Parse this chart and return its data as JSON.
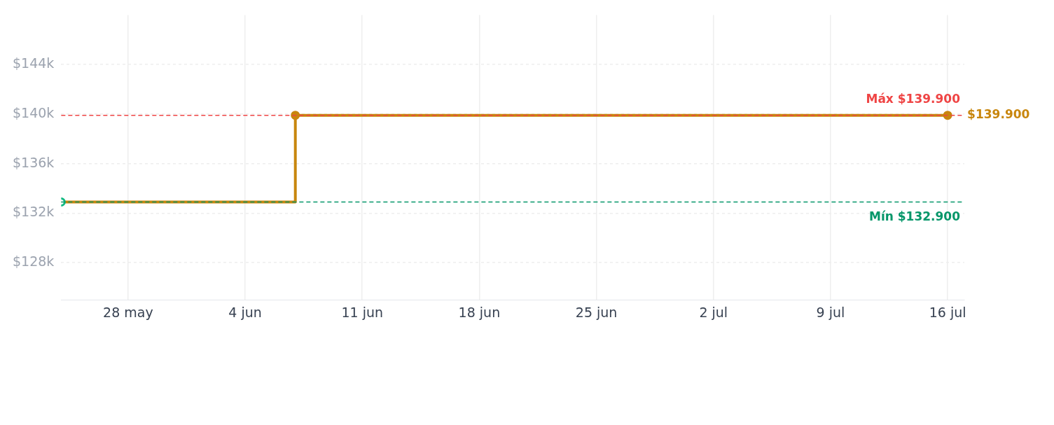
{
  "chart_data": {
    "type": "step",
    "x": [
      "--05-24",
      "--06-07",
      "--07-16"
    ],
    "series": [
      {
        "color": "#c8860d",
        "colors": [
          "#10b981",
          "#c8860d",
          "#c8860d"
        ],
        "values": [
          132900,
          139900,
          139900
        ],
        "value_labels": [
          null,
          null,
          "$139.900"
        ]
      }
    ],
    "xlim": [
      "--05-24",
      "--07-17"
    ],
    "xticks": [
      {
        "value": "--05-28",
        "label": "28 may"
      },
      {
        "value": "--06-04",
        "label": "4 jun"
      },
      {
        "value": "--06-11",
        "label": "11 jun"
      },
      {
        "value": "--06-18",
        "label": "18 jun"
      },
      {
        "value": "--06-25",
        "label": "25 jun"
      },
      {
        "value": "--07-02",
        "label": "2 jul"
      },
      {
        "value": "--07-09",
        "label": "9 jul"
      },
      {
        "value": "--07-16",
        "label": "16 jul"
      }
    ],
    "ylim": [
      125000,
      148000
    ],
    "yticks": [
      {
        "value": 128000,
        "label": "$128k"
      },
      {
        "value": 132000,
        "label": "$132k"
      },
      {
        "value": 136000,
        "label": "$136k"
      },
      {
        "value": 140000,
        "label": "$140k"
      },
      {
        "value": 144000,
        "label": "$144k"
      }
    ],
    "ref_lines": [
      {
        "axis": "y",
        "value": 139900,
        "label": "Máx $139.900",
        "color": "#ef4444",
        "line_style": "dashed"
      },
      {
        "axis": "y",
        "value": 132900,
        "label": "Mín $132.900",
        "color": "#059669",
        "line_style": "dashed"
      }
    ],
    "grid": true,
    "marker": "circle",
    "line_style": "solid",
    "legend": false
  }
}
